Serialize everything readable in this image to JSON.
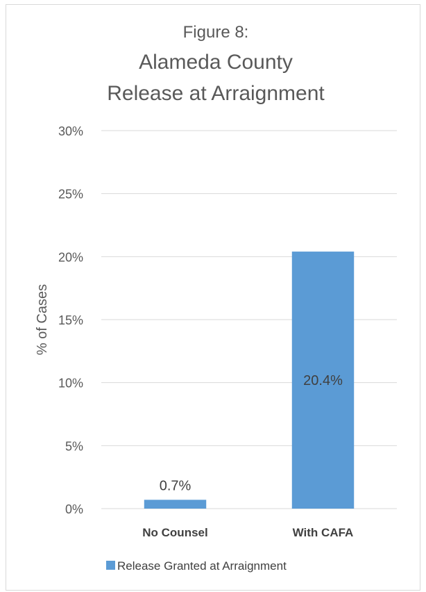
{
  "chart_data": {
    "type": "bar",
    "title_lines": [
      "Figure 8:",
      "Alameda County",
      "Release at Arraignment"
    ],
    "ylabel": "% of Cases",
    "xlabel": "",
    "categories": [
      "No Counsel",
      "With CAFA"
    ],
    "series": [
      {
        "name": "Release Granted at Arraignment",
        "values": [
          0.7,
          20.4
        ],
        "data_labels": [
          "0.7%",
          "20.4%"
        ],
        "color": "#5b9bd5"
      }
    ],
    "ylim": [
      0,
      30
    ],
    "yticks": [
      0,
      5,
      10,
      15,
      20,
      25,
      30
    ],
    "ytick_labels": [
      "0%",
      "5%",
      "10%",
      "15%",
      "20%",
      "25%",
      "30%"
    ],
    "grid": true,
    "legend_position": "bottom"
  },
  "colors": {
    "bar": "#5b9bd5",
    "gridline": "#d9d9d9",
    "text": "#595959"
  }
}
